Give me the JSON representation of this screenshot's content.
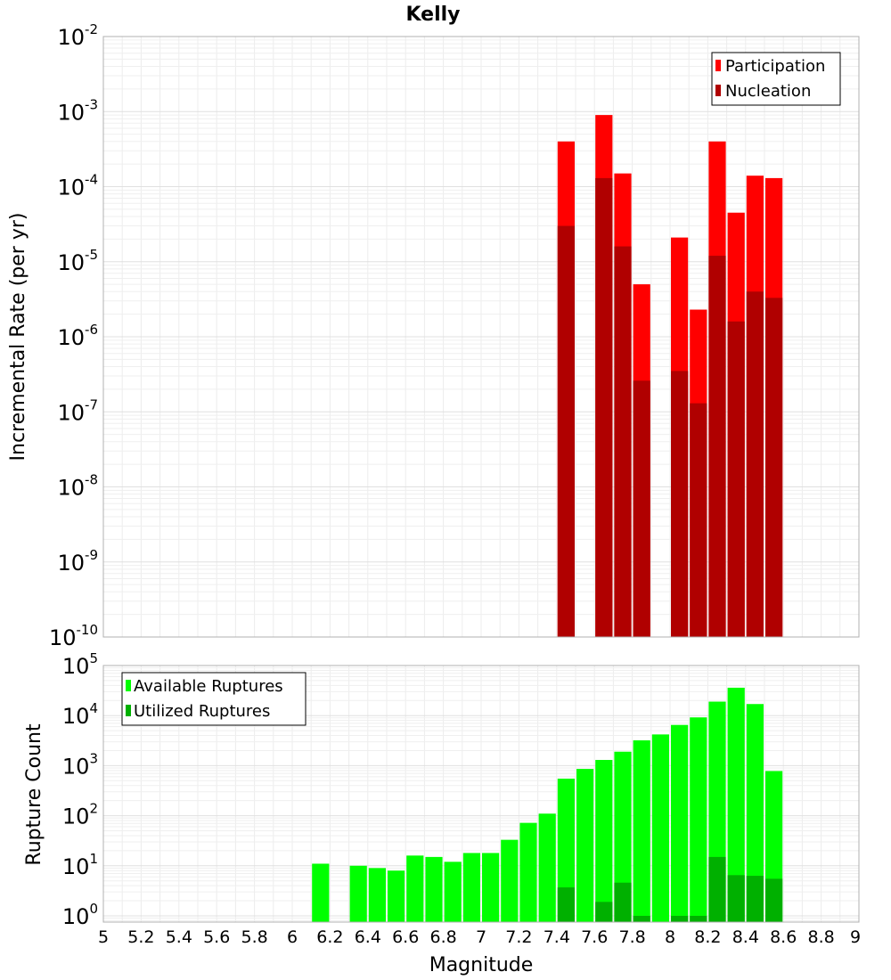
{
  "chart_data": [
    {
      "type": "bar",
      "title": "Kelly",
      "ylabel": "Incremental Rate (per yr)",
      "xlim": [
        5,
        9
      ],
      "ylim": [
        1e-10,
        0.01
      ],
      "yscale": "log",
      "grid": true,
      "legend_position": "top-right",
      "bin_width": 0.1,
      "y_tick_labels": [
        {
          "base": "10",
          "exp": "-10",
          "value": 1e-10
        },
        {
          "base": "10",
          "exp": "-9",
          "value": 1e-09
        },
        {
          "base": "10",
          "exp": "-8",
          "value": 1e-08
        },
        {
          "base": "10",
          "exp": "-7",
          "value": 1e-07
        },
        {
          "base": "10",
          "exp": "-6",
          "value": 1e-06
        },
        {
          "base": "10",
          "exp": "-5",
          "value": 1e-05
        },
        {
          "base": "10",
          "exp": "-4",
          "value": 0.0001
        },
        {
          "base": "10",
          "exp": "-3",
          "value": 0.001
        },
        {
          "base": "10",
          "exp": "-2",
          "value": 0.01
        }
      ],
      "series": [
        {
          "name": "Participation",
          "color": "#ff0000",
          "x": [
            7.45,
            7.65,
            7.75,
            7.85,
            8.05,
            8.15,
            8.25,
            8.35,
            8.45,
            8.55
          ],
          "values": [
            0.0004,
            0.0009,
            0.00015,
            5e-06,
            2.1e-05,
            2.3e-06,
            0.0004,
            4.5e-05,
            0.00014,
            0.00013
          ]
        },
        {
          "name": "Nucleation",
          "color": "#b00000",
          "x": [
            7.45,
            7.65,
            7.75,
            7.85,
            8.05,
            8.15,
            8.25,
            8.35,
            8.45,
            8.55
          ],
          "values": [
            3e-05,
            0.00013,
            1.6e-05,
            2.6e-07,
            3.5e-07,
            1.3e-07,
            1.2e-05,
            1.6e-06,
            4e-06,
            3.3e-06
          ]
        }
      ]
    },
    {
      "type": "bar",
      "xlabel": "Magnitude",
      "ylabel": "Rupture Count",
      "xlim": [
        5,
        9
      ],
      "ylim": [
        0.75,
        100000.0
      ],
      "yscale": "log",
      "grid": true,
      "legend_position": "top-left",
      "bin_width": 0.1,
      "x_tick_labels": [
        "5",
        "5.2",
        "5.4",
        "5.6",
        "5.8",
        "6",
        "6.2",
        "6.4",
        "6.6",
        "6.8",
        "7",
        "7.2",
        "7.4",
        "7.6",
        "7.8",
        "8",
        "8.2",
        "8.4",
        "8.6",
        "8.8",
        "9"
      ],
      "y_tick_labels": [
        {
          "base": "10",
          "exp": "0",
          "value": 1
        },
        {
          "base": "10",
          "exp": "1",
          "value": 10
        },
        {
          "base": "10",
          "exp": "2",
          "value": 100
        },
        {
          "base": "10",
          "exp": "3",
          "value": 1000
        },
        {
          "base": "10",
          "exp": "4",
          "value": 10000
        },
        {
          "base": "10",
          "exp": "5",
          "value": 100000
        }
      ],
      "series": [
        {
          "name": "Available Ruptures",
          "color": "#00ff00",
          "x": [
            6.15,
            6.35,
            6.45,
            6.55,
            6.65,
            6.75,
            6.85,
            6.95,
            7.05,
            7.15,
            7.25,
            7.35,
            7.45,
            7.55,
            7.65,
            7.75,
            7.85,
            7.95,
            8.05,
            8.15,
            8.25,
            8.35,
            8.45,
            8.55
          ],
          "values": [
            11,
            10,
            9,
            8,
            16,
            15,
            12,
            18,
            18,
            33,
            72,
            110,
            550,
            860,
            1300,
            1900,
            3200,
            4200,
            6500,
            9200,
            19000,
            36000,
            17000,
            780
          ]
        },
        {
          "name": "Utilized Ruptures",
          "color": "#00b000",
          "x": [
            7.45,
            7.65,
            7.75,
            7.85,
            8.05,
            8.15,
            8.25,
            8.35,
            8.45,
            8.55
          ],
          "values": [
            3.7,
            1.9,
            4.6,
            1.0,
            1.0,
            1.0,
            15,
            6.5,
            6.3,
            5.5
          ]
        }
      ]
    }
  ]
}
